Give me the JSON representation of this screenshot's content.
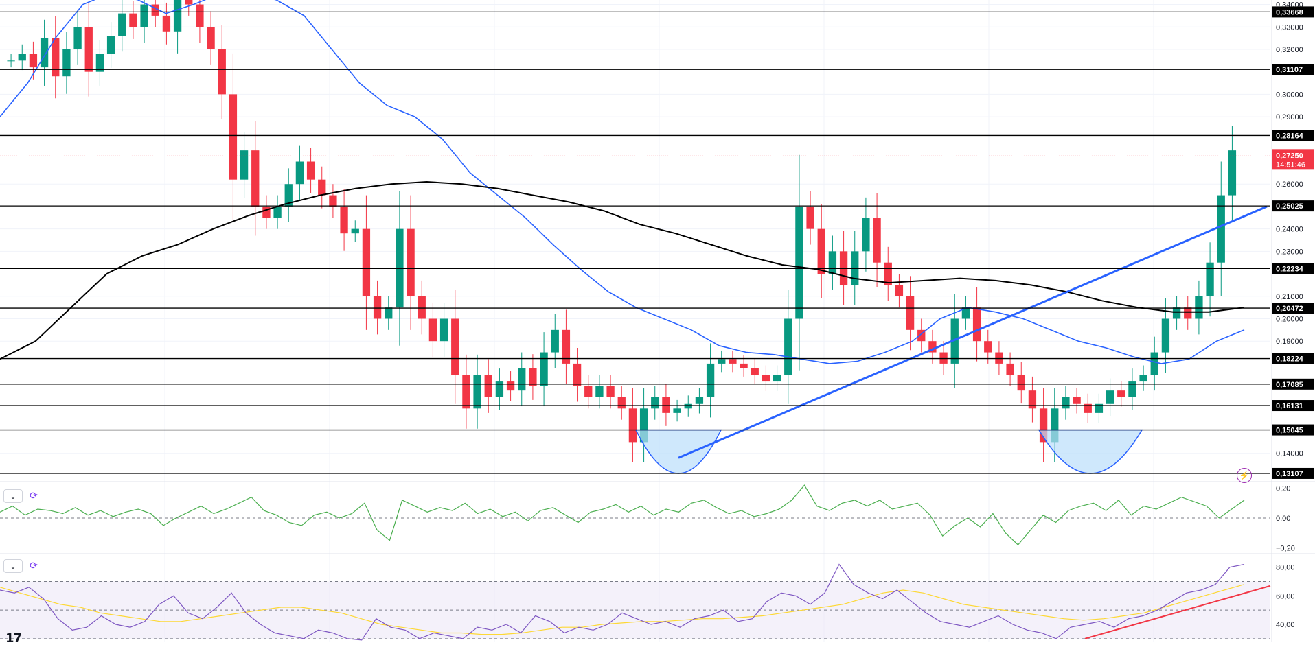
{
  "chart_data": [
    {
      "type": "candlestick",
      "pane": "price",
      "y_axis_ticks": [
        "0,34000",
        "0,33000",
        "0,32000",
        "0,30000",
        "0,29000",
        "0,26000",
        "0,24000",
        "0,23000",
        "0,21000",
        "0,20000",
        "0,19000",
        "0,14000"
      ],
      "ylim": [
        0.128,
        0.342
      ],
      "horizontal_levels": [
        {
          "label": "0,33668",
          "value": 0.33668
        },
        {
          "label": "0,31107",
          "value": 0.31107
        },
        {
          "label": "0,28164",
          "value": 0.28164
        },
        {
          "label": "0,25025",
          "value": 0.25025
        },
        {
          "label": "0,22234",
          "value": 0.22234
        },
        {
          "label": "0,20472",
          "value": 0.20472
        },
        {
          "label": "0,18224",
          "value": 0.18224
        },
        {
          "label": "0,17085",
          "value": 0.17085
        },
        {
          "label": "0,16131",
          "value": 0.16131
        },
        {
          "label": "0,15045",
          "value": 0.15045
        },
        {
          "label": "0,13107",
          "value": 0.13107
        }
      ],
      "last_price": {
        "label": "0,27250",
        "countdown": "14:51:46",
        "value": 0.2725
      },
      "colors": {
        "up": "#089981",
        "down": "#f23645",
        "ma_fast": "#2962ff",
        "ma_slow": "#000000",
        "trendline": "#2962ff",
        "pattern_fill": "#bbdefb"
      },
      "closes": [
        0.315,
        0.318,
        0.312,
        0.325,
        0.308,
        0.32,
        0.33,
        0.31,
        0.318,
        0.326,
        0.336,
        0.33,
        0.34,
        0.335,
        0.328,
        0.345,
        0.34,
        0.33,
        0.32,
        0.3,
        0.262,
        0.275,
        0.25,
        0.245,
        0.25,
        0.26,
        0.27,
        0.262,
        0.255,
        0.25,
        0.238,
        0.24,
        0.21,
        0.2,
        0.205,
        0.24,
        0.21,
        0.2,
        0.19,
        0.2,
        0.175,
        0.16,
        0.175,
        0.165,
        0.172,
        0.168,
        0.178,
        0.17,
        0.185,
        0.195,
        0.18,
        0.17,
        0.165,
        0.17,
        0.165,
        0.16,
        0.145,
        0.16,
        0.165,
        0.158,
        0.16,
        0.162,
        0.165,
        0.18,
        0.182,
        0.18,
        0.178,
        0.175,
        0.172,
        0.175,
        0.2,
        0.25,
        0.24,
        0.22,
        0.23,
        0.215,
        0.23,
        0.245,
        0.225,
        0.215,
        0.21,
        0.195,
        0.19,
        0.185,
        0.18,
        0.2,
        0.205,
        0.19,
        0.185,
        0.18,
        0.175,
        0.168,
        0.16,
        0.145,
        0.16,
        0.165,
        0.162,
        0.158,
        0.162,
        0.168,
        0.165,
        0.172,
        0.175,
        0.185,
        0.2,
        0.205,
        0.2,
        0.21,
        0.225,
        0.255,
        0.275
      ],
      "ma_fast": [
        0.29,
        0.305,
        0.325,
        0.34,
        0.345,
        0.342,
        0.336,
        0.34,
        0.345,
        0.345,
        0.342,
        0.335,
        0.32,
        0.305,
        0.295,
        0.29,
        0.28,
        0.265,
        0.255,
        0.245,
        0.233,
        0.222,
        0.212,
        0.205,
        0.2,
        0.195,
        0.188,
        0.185,
        0.184,
        0.182,
        0.18,
        0.181,
        0.185,
        0.19,
        0.2,
        0.205,
        0.203,
        0.2,
        0.195,
        0.19,
        0.187,
        0.183,
        0.18,
        0.182,
        0.19,
        0.195
      ],
      "ma_slow": [
        0.182,
        0.19,
        0.205,
        0.22,
        0.228,
        0.233,
        0.24,
        0.246,
        0.251,
        0.255,
        0.258,
        0.26,
        0.261,
        0.26,
        0.258,
        0.255,
        0.252,
        0.248,
        0.242,
        0.238,
        0.233,
        0.228,
        0.224,
        0.222,
        0.218,
        0.216,
        0.217,
        0.218,
        0.217,
        0.215,
        0.212,
        0.208,
        0.205,
        0.203,
        0.203,
        0.205
      ],
      "trendlines": [
        {
          "from": [
            0.135,
            "a"
          ],
          "to": [
            0.25,
            "b"
          ]
        }
      ]
    },
    {
      "type": "line",
      "pane": "oscillator",
      "y_axis_ticks": [
        "0,20",
        "0,00",
        "−0,20"
      ],
      "ylim": [
        -0.23,
        0.23
      ],
      "color": "#4caf50",
      "values": [
        0.04,
        0.08,
        0.02,
        0.06,
        0.05,
        0.03,
        0.07,
        0.02,
        0.05,
        0.01,
        0.04,
        0.06,
        0.03,
        -0.05,
        0.0,
        0.04,
        0.08,
        0.03,
        0.06,
        0.1,
        0.14,
        0.05,
        0.02,
        -0.03,
        -0.05,
        0.02,
        0.04,
        0.0,
        0.03,
        0.1,
        -0.08,
        -0.15,
        0.12,
        0.08,
        0.04,
        0.07,
        0.05,
        0.1,
        0.03,
        0.06,
        0.01,
        0.04,
        -0.02,
        0.05,
        0.07,
        0.02,
        -0.03,
        0.04,
        0.06,
        0.09,
        0.04,
        0.08,
        0.02,
        0.06,
        0.04,
        0.1,
        0.12,
        0.07,
        0.03,
        0.05,
        0.01,
        0.03,
        0.06,
        0.12,
        0.22,
        0.08,
        0.05,
        0.1,
        0.12,
        0.08,
        0.12,
        0.06,
        0.08,
        0.1,
        0.02,
        -0.12,
        -0.05,
        0.0,
        -0.06,
        0.03,
        -0.1,
        -0.18,
        -0.08,
        0.02,
        -0.03,
        0.05,
        0.08,
        0.1,
        0.05,
        0.12,
        0.02,
        0.08,
        0.06,
        0.1,
        0.14,
        0.11,
        0.08,
        0.0,
        0.06,
        0.12
      ]
    },
    {
      "type": "line",
      "pane": "rsi",
      "y_axis_ticks": [
        "80,00",
        "60,00",
        "40,00"
      ],
      "ylim": [
        28,
        88
      ],
      "bands": [
        70,
        50,
        30
      ],
      "colors": {
        "rsi": "#7e57c2",
        "signal": "#fdd835",
        "band_fill": "#ede7f6",
        "trendline": "#f23645"
      },
      "values": [
        64,
        62,
        66,
        58,
        44,
        36,
        38,
        46,
        40,
        38,
        42,
        54,
        60,
        48,
        44,
        52,
        62,
        48,
        40,
        34,
        32,
        30,
        36,
        34,
        30,
        29,
        44,
        38,
        36,
        30,
        34,
        32,
        30,
        38,
        36,
        40,
        34,
        46,
        42,
        34,
        38,
        36,
        40,
        48,
        44,
        40,
        42,
        38,
        44,
        46,
        50,
        42,
        44,
        56,
        62,
        60,
        54,
        62,
        82,
        68,
        62,
        58,
        64,
        56,
        48,
        42,
        40,
        38,
        42,
        46,
        40,
        36,
        34,
        30,
        38,
        40,
        42,
        38,
        44,
        46,
        50,
        56,
        62,
        64,
        68,
        80,
        82
      ],
      "signal": [
        66,
        62,
        58,
        54,
        52,
        48,
        46,
        44,
        42,
        42,
        44,
        46,
        48,
        50,
        52,
        52,
        50,
        48,
        44,
        40,
        38,
        36,
        34,
        34,
        33,
        33,
        34,
        36,
        38,
        38,
        40,
        41,
        42,
        42,
        43,
        44,
        44,
        45,
        46,
        48,
        50,
        52,
        54,
        58,
        62,
        64,
        62,
        58,
        54,
        52,
        50,
        48,
        46,
        44,
        43,
        44,
        46,
        48,
        52,
        56,
        60,
        64,
        68
      ]
    }
  ]
}
